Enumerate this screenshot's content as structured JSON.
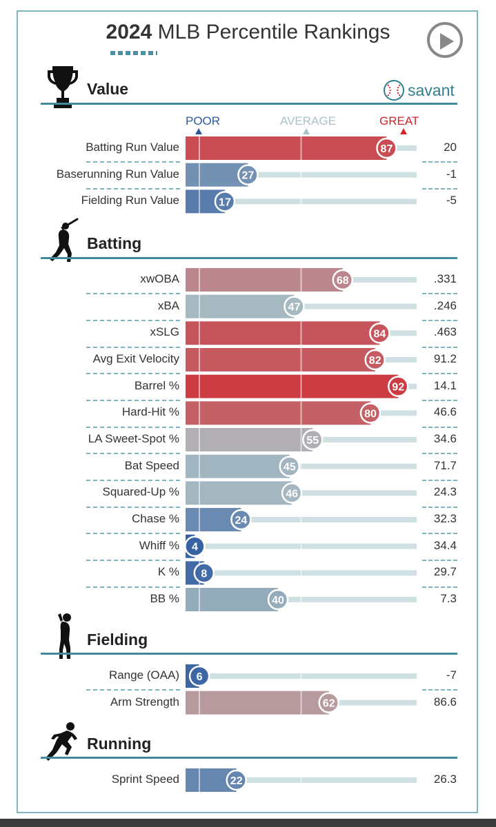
{
  "title": {
    "year": "2024",
    "text": "MLB Percentile Rankings"
  },
  "brand": "savant",
  "scale": {
    "poor": "POOR",
    "average": "AVERAGE",
    "great": "GREAT"
  },
  "colors": {
    "poor": "#2c5aa0",
    "average": "#aebfc3",
    "great": "#d2232a",
    "teal": "#3f8b97",
    "track": "#cfe0e3"
  },
  "icons": {
    "value": "trophy-icon",
    "batting": "batter-icon",
    "fielding": "fielder-icon",
    "running": "runner-icon",
    "play": "play-icon",
    "savant": "baseball-icon"
  },
  "chart_data": {
    "type": "bar",
    "xlim": [
      0,
      100
    ],
    "sections": [
      {
        "name": "Value",
        "metrics": [
          {
            "label": "Batting Run Value",
            "percentile": 87,
            "value": "20"
          },
          {
            "label": "Baserunning Run Value",
            "percentile": 27,
            "value": "-1"
          },
          {
            "label": "Fielding Run Value",
            "percentile": 17,
            "value": "-5"
          }
        ]
      },
      {
        "name": "Batting",
        "metrics": [
          {
            "label": "xwOBA",
            "percentile": 68,
            "value": ".331"
          },
          {
            "label": "xBA",
            "percentile": 47,
            "value": ".246"
          },
          {
            "label": "xSLG",
            "percentile": 84,
            "value": ".463"
          },
          {
            "label": "Avg Exit Velocity",
            "percentile": 82,
            "value": "91.2"
          },
          {
            "label": "Barrel %",
            "percentile": 92,
            "value": "14.1"
          },
          {
            "label": "Hard-Hit %",
            "percentile": 80,
            "value": "46.6"
          },
          {
            "label": "LA Sweet-Spot %",
            "percentile": 55,
            "value": "34.6"
          },
          {
            "label": "Bat Speed",
            "percentile": 45,
            "value": "71.7"
          },
          {
            "label": "Squared-Up %",
            "percentile": 46,
            "value": "24.3"
          },
          {
            "label": "Chase %",
            "percentile": 24,
            "value": "32.3"
          },
          {
            "label": "Whiff %",
            "percentile": 4,
            "value": "34.4"
          },
          {
            "label": "K %",
            "percentile": 8,
            "value": "29.7"
          },
          {
            "label": "BB %",
            "percentile": 40,
            "value": "7.3"
          }
        ]
      },
      {
        "name": "Fielding",
        "metrics": [
          {
            "label": "Range (OAA)",
            "percentile": 6,
            "value": "-7"
          },
          {
            "label": "Arm Strength",
            "percentile": 62,
            "value": "86.6"
          }
        ]
      },
      {
        "name": "Running",
        "metrics": [
          {
            "label": "Sprint Speed",
            "percentile": 22,
            "value": "26.3"
          }
        ]
      }
    ]
  }
}
